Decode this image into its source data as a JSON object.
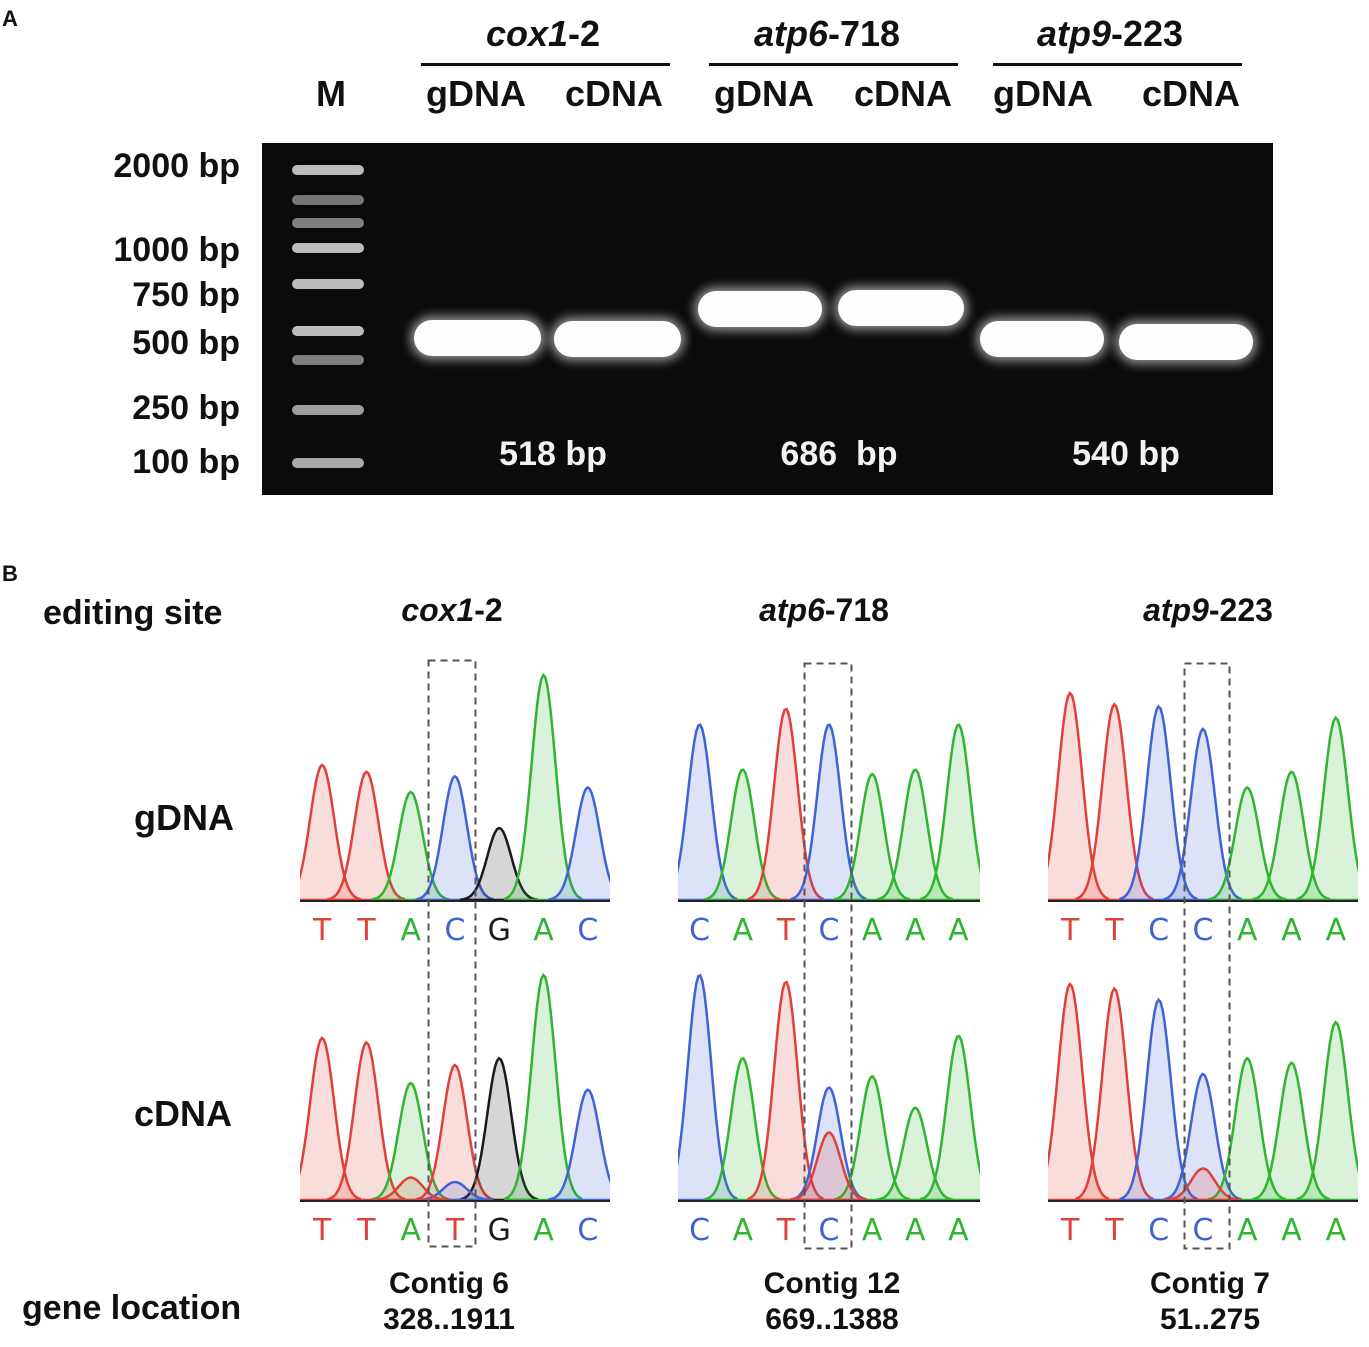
{
  "panel_a": {
    "label": "A",
    "marker_label": "M",
    "genes": [
      {
        "name": "cox1",
        "suffix": "-2",
        "sub1": "gDNA",
        "sub2": "cDNA",
        "band_size": "518 bp"
      },
      {
        "name": "atp6",
        "suffix": "-718",
        "sub1": "gDNA",
        "sub2": "cDNA",
        "band_size": "686  bp"
      },
      {
        "name": "atp9",
        "suffix": "-223",
        "sub1": "gDNA",
        "sub2": "cDNA",
        "band_size": "540 bp"
      }
    ],
    "ladder": [
      "2000 bp",
      "1000 bp",
      "750 bp",
      "500 bp",
      "250 bp",
      "100 bp"
    ]
  },
  "panel_b": {
    "label": "B",
    "row_editing_site": "editing site",
    "row_gdna": "gDNA",
    "row_cdna": "cDNA",
    "row_gene_location": "gene location",
    "sites": [
      {
        "name": "cox1",
        "suffix": "-2",
        "location_line1": "Contig 6",
        "location_line2": "328..1911",
        "gdna_bases": [
          "T",
          "T",
          "A",
          "C",
          "G",
          "A",
          "C"
        ],
        "cdna_bases": [
          "T",
          "T",
          "A",
          "T",
          "G",
          "A",
          "C"
        ]
      },
      {
        "name": "atp6",
        "suffix": "-718",
        "location_line1": "Contig 12",
        "location_line2": "669..1388",
        "gdna_bases": [
          "C",
          "A",
          "T",
          "C",
          "A",
          "A",
          "A"
        ],
        "cdna_bases": [
          "C",
          "A",
          "T",
          "C",
          "A",
          "A",
          "A"
        ]
      },
      {
        "name": "atp9",
        "suffix": "-223",
        "location_line1": "Contig 7",
        "location_line2": "51..275",
        "gdna_bases": [
          "T",
          "T",
          "C",
          "C",
          "A",
          "A",
          "A"
        ],
        "cdna_bases": [
          "T",
          "T",
          "C",
          "C",
          "A",
          "A",
          "A"
        ]
      }
    ]
  },
  "base_colors": {
    "A": "#2fb52f",
    "C": "#3f62d6",
    "G": "#1a1a1a",
    "T": "#e0403a"
  }
}
